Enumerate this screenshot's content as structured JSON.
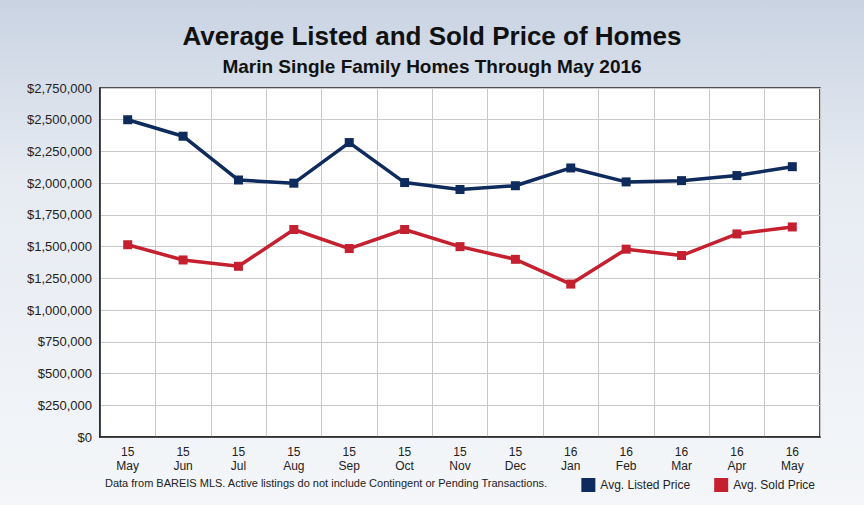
{
  "chart_data": {
    "type": "line",
    "title": "Average Listed and Sold Price of Homes",
    "subtitle": "Marin Single Family Homes Through May 2016",
    "annotations": [
      "Data from BAREIS MLS. Active listings do not include Contingent or Pending Transactions."
    ],
    "categories": [
      "15\nMay",
      "15\nJun",
      "15\nJul",
      "15\nAug",
      "15\nSep",
      "15\nOct",
      "15\nNov",
      "15\nDec",
      "16\nJan",
      "16\nFeb",
      "16\nMar",
      "16\nApr",
      "16\nMay"
    ],
    "series": [
      {
        "name": "Avg. Listed Price",
        "color": "#0f2a5c",
        "marker": "square",
        "values": [
          2500000,
          2370000,
          2025000,
          2000000,
          2320000,
          2005000,
          1950000,
          1980000,
          2120000,
          2010000,
          2020000,
          2060000,
          2130000
        ]
      },
      {
        "name": "Avg. Sold Price",
        "color": "#c4202f",
        "marker": "square",
        "values": [
          1515000,
          1395000,
          1345000,
          1635000,
          1485000,
          1635000,
          1500000,
          1400000,
          1205000,
          1480000,
          1430000,
          1600000,
          1655000
        ]
      }
    ],
    "ylim": [
      0,
      2750000
    ],
    "yticks": [
      {
        "value": 0,
        "label": "$0"
      },
      {
        "value": 250000,
        "label": "$250,000"
      },
      {
        "value": 500000,
        "label": "$500,000"
      },
      {
        "value": 750000,
        "label": "$750,000"
      },
      {
        "value": 1000000,
        "label": "$1,000,000"
      },
      {
        "value": 1250000,
        "label": "$1,250,000"
      },
      {
        "value": 1500000,
        "label": "$1,500,000"
      },
      {
        "value": 1750000,
        "label": "$1,750,000"
      },
      {
        "value": 2000000,
        "label": "$2,000,000"
      },
      {
        "value": 2250000,
        "label": "$2,250,000"
      },
      {
        "value": 2500000,
        "label": "$2,500,000"
      },
      {
        "value": 2750000,
        "label": "$2,750,000"
      }
    ],
    "grid": true,
    "legend": "bottom-right"
  }
}
